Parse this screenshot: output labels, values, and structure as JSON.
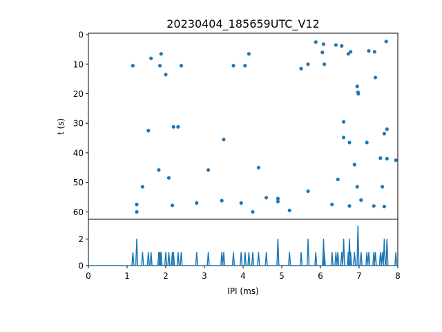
{
  "chart_data": [
    {
      "type": "scatter",
      "title": "20230404_185659UTC_V12",
      "xlabel": "",
      "ylabel": "t (s)",
      "xlim": [
        0,
        8
      ],
      "ylim": [
        62.5,
        -0.5
      ],
      "y_inverted": true,
      "yticks": [
        "0",
        "10",
        "20",
        "30",
        "40",
        "50",
        "60"
      ],
      "color": "#1f77b4",
      "points": [
        [
          1.15,
          10.5
        ],
        [
          1.25,
          57.5
        ],
        [
          1.25,
          60.0
        ],
        [
          1.4,
          51.5
        ],
        [
          1.55,
          32.5
        ],
        [
          1.62,
          8.0
        ],
        [
          1.82,
          45.8
        ],
        [
          1.85,
          10.5
        ],
        [
          1.88,
          6.5
        ],
        [
          2.0,
          13.5
        ],
        [
          2.08,
          48.5
        ],
        [
          2.17,
          57.8
        ],
        [
          2.2,
          31.2
        ],
        [
          2.32,
          31.2
        ],
        [
          2.4,
          10.5
        ],
        [
          2.8,
          57.0
        ],
        [
          3.1,
          45.8
        ],
        [
          3.45,
          56.2
        ],
        [
          3.5,
          35.5
        ],
        [
          3.75,
          10.5
        ],
        [
          3.95,
          57.0
        ],
        [
          4.05,
          10.5
        ],
        [
          4.15,
          6.5
        ],
        [
          4.25,
          60.0
        ],
        [
          4.4,
          45.0
        ],
        [
          4.6,
          55.2
        ],
        [
          4.9,
          55.5
        ],
        [
          4.9,
          56.5
        ],
        [
          5.2,
          59.5
        ],
        [
          5.5,
          11.5
        ],
        [
          5.68,
          10.0
        ],
        [
          5.68,
          53.0
        ],
        [
          5.88,
          2.5
        ],
        [
          6.05,
          6.0
        ],
        [
          6.08,
          3.2
        ],
        [
          6.1,
          10.0
        ],
        [
          6.3,
          57.5
        ],
        [
          6.4,
          3.5
        ],
        [
          6.45,
          49.0
        ],
        [
          6.55,
          3.8
        ],
        [
          6.6,
          34.8
        ],
        [
          6.6,
          29.5
        ],
        [
          6.72,
          6.5
        ],
        [
          6.75,
          36.5
        ],
        [
          6.75,
          58.0
        ],
        [
          6.78,
          5.8
        ],
        [
          6.88,
          44.0
        ],
        [
          6.95,
          51.5
        ],
        [
          6.95,
          17.5
        ],
        [
          6.97,
          19.5
        ],
        [
          6.98,
          20.0
        ],
        [
          7.05,
          56.0
        ],
        [
          7.2,
          36.5
        ],
        [
          7.25,
          5.5
        ],
        [
          7.38,
          58.0
        ],
        [
          7.4,
          5.8
        ],
        [
          7.42,
          14.5
        ],
        [
          7.55,
          41.8
        ],
        [
          7.6,
          51.5
        ],
        [
          7.65,
          33.5
        ],
        [
          7.65,
          58.2
        ],
        [
          7.7,
          2.3
        ],
        [
          7.72,
          32.0
        ],
        [
          7.72,
          42.0
        ],
        [
          7.95,
          42.5
        ]
      ]
    },
    {
      "type": "line",
      "xlabel": "IPI (ms)",
      "ylabel": "",
      "xlim": [
        0,
        8
      ],
      "ylim": [
        0,
        3.5
      ],
      "xticks": [
        "0",
        "1",
        "2",
        "3",
        "4",
        "5",
        "6",
        "7",
        "8"
      ],
      "yticks": [
        "0",
        "2"
      ],
      "color": "#1f77b4",
      "spikes": [
        [
          1.15,
          1
        ],
        [
          1.25,
          2
        ],
        [
          1.4,
          1
        ],
        [
          1.55,
          1
        ],
        [
          1.62,
          1
        ],
        [
          1.82,
          1
        ],
        [
          1.85,
          1
        ],
        [
          1.88,
          1
        ],
        [
          2.0,
          1
        ],
        [
          2.08,
          1
        ],
        [
          2.17,
          1
        ],
        [
          2.2,
          1
        ],
        [
          2.32,
          1
        ],
        [
          2.4,
          1
        ],
        [
          2.8,
          1
        ],
        [
          3.1,
          1
        ],
        [
          3.45,
          1
        ],
        [
          3.5,
          1
        ],
        [
          3.75,
          1
        ],
        [
          3.95,
          1
        ],
        [
          4.05,
          1
        ],
        [
          4.15,
          1
        ],
        [
          4.25,
          1
        ],
        [
          4.4,
          1
        ],
        [
          4.6,
          1
        ],
        [
          4.9,
          2
        ],
        [
          5.2,
          1
        ],
        [
          5.5,
          1
        ],
        [
          5.68,
          2
        ],
        [
          5.88,
          1
        ],
        [
          6.08,
          2
        ],
        [
          6.1,
          1
        ],
        [
          6.3,
          1
        ],
        [
          6.4,
          1
        ],
        [
          6.45,
          1
        ],
        [
          6.55,
          1
        ],
        [
          6.6,
          2
        ],
        [
          6.72,
          1
        ],
        [
          6.75,
          2
        ],
        [
          6.78,
          1
        ],
        [
          6.88,
          1
        ],
        [
          6.97,
          3
        ],
        [
          7.05,
          1
        ],
        [
          7.2,
          1
        ],
        [
          7.25,
          1
        ],
        [
          7.38,
          1
        ],
        [
          7.42,
          1
        ],
        [
          7.55,
          1
        ],
        [
          7.6,
          1
        ],
        [
          7.65,
          2
        ],
        [
          7.72,
          2
        ],
        [
          7.95,
          1
        ]
      ]
    }
  ]
}
